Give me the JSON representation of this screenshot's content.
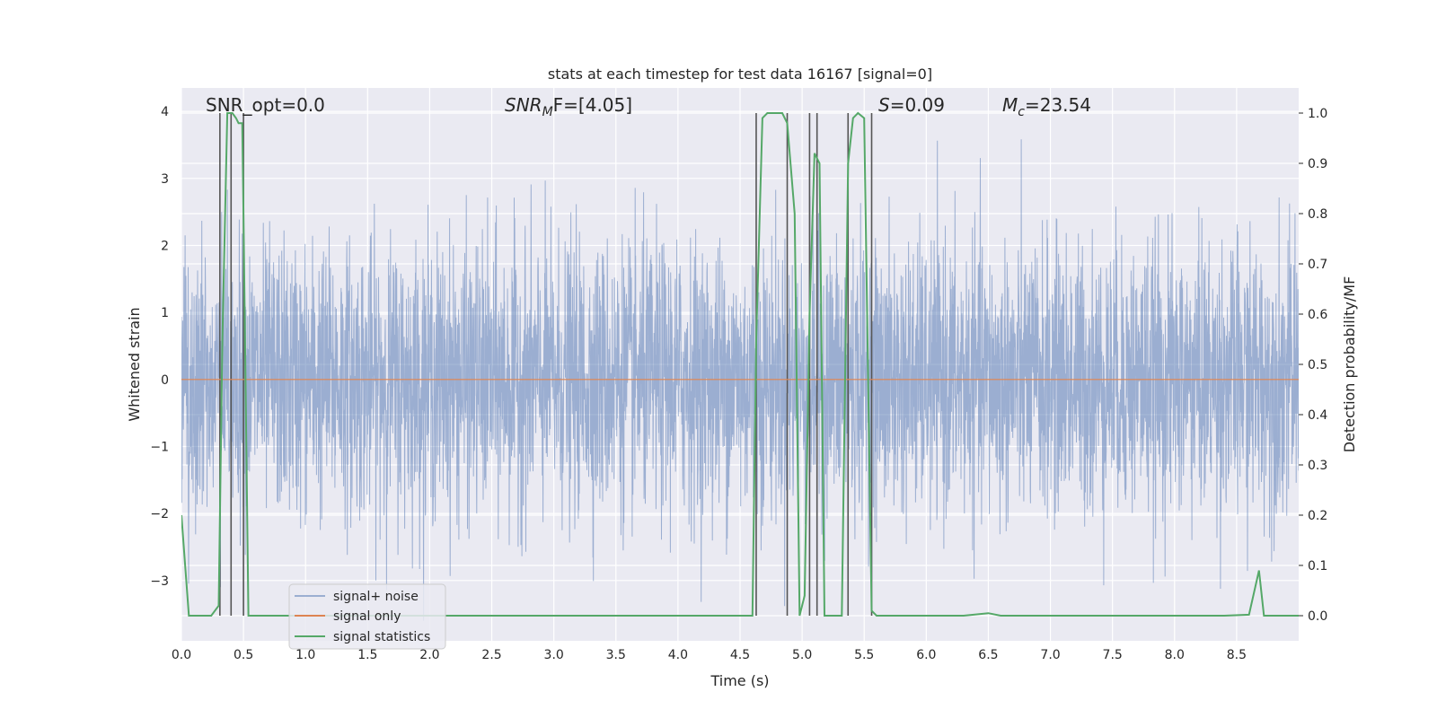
{
  "chart_data": {
    "type": "line",
    "title": "stats at each timestep for test data 16167 [signal=0]",
    "xlabel": "Time (s)",
    "ylabel_left": "Whitened strain",
    "ylabel_right": "Detection probability/MF",
    "xlim": [
      0.0,
      9.0
    ],
    "ylim_left": [
      -3.9,
      4.35
    ],
    "ylim_right": [
      -0.05,
      1.05
    ],
    "x_ticks": [
      "0.0",
      "0.5",
      "1.0",
      "1.5",
      "2.0",
      "2.5",
      "3.0",
      "3.5",
      "4.0",
      "4.5",
      "5.0",
      "5.5",
      "6.0",
      "6.5",
      "7.0",
      "7.5",
      "8.0",
      "8.5"
    ],
    "y_ticks_left": [
      "−3",
      "−2",
      "−1",
      "0",
      "1",
      "2",
      "3",
      "4"
    ],
    "y_ticks_right": [
      "0.0",
      "0.1",
      "0.2",
      "0.3",
      "0.4",
      "0.5",
      "0.6",
      "0.7",
      "0.8",
      "0.9",
      "1.0"
    ],
    "grid": true,
    "legend_position": "lower-left",
    "background": "#eaeaf2",
    "annotations": {
      "snr_opt": "SNR_opt=0.0",
      "snr_mf_main": "SNR",
      "snr_mf_sub": "M",
      "snr_mf_rest": "F=[4.05]",
      "s_sym": "S",
      "s_val": "=0.09",
      "mc_sym": "M",
      "mc_sub": "c",
      "mc_val": "=23.54"
    },
    "series": [
      {
        "name": "signal+ noise",
        "color": "#4c72b0",
        "opacity": 0.5,
        "kind": "noise",
        "typical_sigma": 1.0,
        "peak_max": 4.0,
        "peak_min": -3.6
      },
      {
        "name": "signal only",
        "color": "#dd8452",
        "kind": "constant",
        "value": 0.0
      },
      {
        "name": "signal statistics",
        "color": "#55a868",
        "axis": "right",
        "x": [
          0.0,
          0.06,
          0.12,
          0.18,
          0.24,
          0.3,
          0.33,
          0.37,
          0.41,
          0.44,
          0.46,
          0.49,
          0.5,
          0.54,
          0.6,
          0.66,
          1.0,
          2.0,
          3.0,
          4.0,
          4.5,
          4.6,
          4.63,
          4.68,
          4.72,
          4.78,
          4.84,
          4.88,
          4.94,
          4.98,
          5.02,
          5.06,
          5.1,
          5.14,
          5.18,
          5.22,
          5.27,
          5.32,
          5.37,
          5.41,
          5.45,
          5.5,
          5.56,
          5.6,
          5.66,
          6.0,
          6.12,
          6.3,
          6.5,
          6.6,
          7.0,
          7.2,
          7.4,
          8.0,
          8.4,
          8.6,
          8.68,
          8.72,
          8.8,
          9.0
        ],
        "y": [
          0.2,
          0.0,
          0.0,
          0.0,
          0.0,
          0.02,
          0.55,
          1.0,
          1.0,
          0.99,
          0.98,
          0.98,
          0.8,
          0.0,
          0.0,
          0.0,
          0.0,
          0.0,
          0.0,
          0.0,
          0.0,
          0.0,
          0.55,
          0.99,
          1.0,
          1.0,
          1.0,
          0.98,
          0.8,
          0.0,
          0.04,
          0.6,
          0.92,
          0.9,
          0.0,
          0.0,
          0.0,
          0.0,
          0.9,
          0.99,
          1.0,
          0.99,
          0.01,
          0.0,
          0.0,
          0.0,
          0.0,
          0.0,
          0.005,
          0.0,
          0.0,
          0.0,
          0.0,
          0.0,
          0.0,
          0.002,
          0.09,
          0.0,
          0.0,
          0.0
        ]
      }
    ],
    "vertical_markers": {
      "color": "#555555",
      "x": [
        0.31,
        0.4,
        0.5,
        4.63,
        4.88,
        5.06,
        5.12,
        5.37,
        5.56
      ]
    }
  }
}
